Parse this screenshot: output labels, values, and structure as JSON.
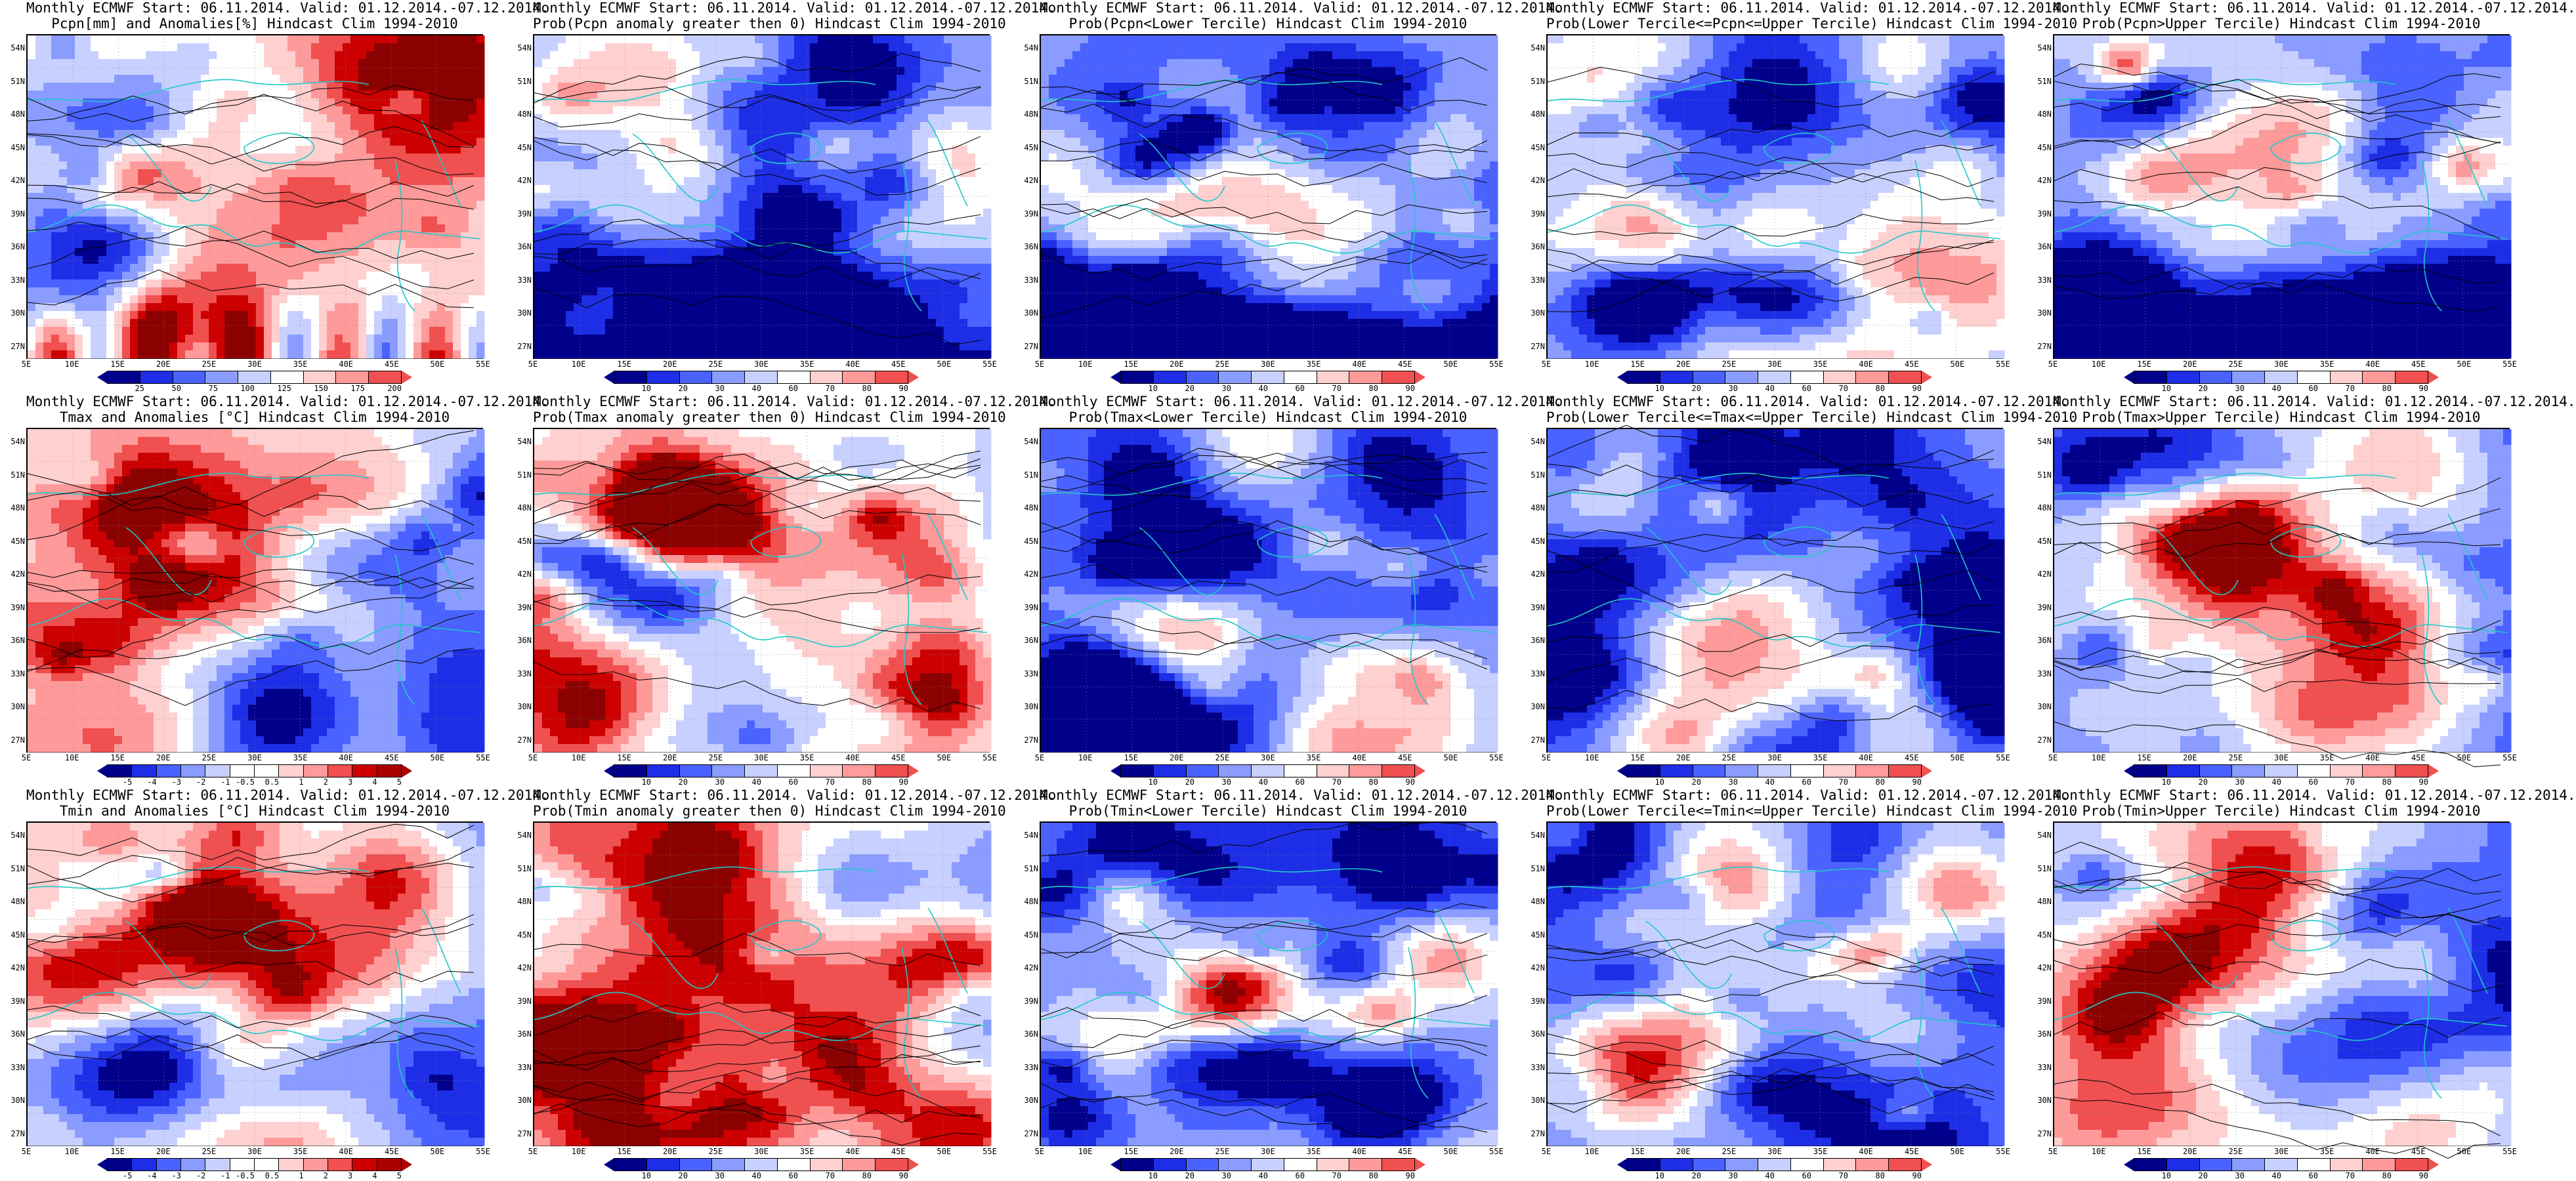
{
  "title_line1": "Monthly ECMWF Start: 06.11.2014. Valid: 01.12.2014.-07.12.2014.",
  "lat_ticks": [
    "54N",
    "51N",
    "48N",
    "45N",
    "42N",
    "39N",
    "36N",
    "33N",
    "30N",
    "27N"
  ],
  "lon_ticks": [
    "5E",
    "10E",
    "15E",
    "20E",
    "25E",
    "30E",
    "35E",
    "40E",
    "45E",
    "50E",
    "55E"
  ],
  "colors": {
    "ramp": [
      "#00008b",
      "#1e2ee6",
      "#4a62ff",
      "#8a9cff",
      "#c8d0ff",
      "#ffffff",
      "#ffd0d0",
      "#ff9a9a",
      "#f05050",
      "#cc0000",
      "#8b0000"
    ],
    "coast": "#20c8c8",
    "contour": "#000000"
  },
  "cbar_anomaly_tmax": [
    "-5",
    "-4",
    "-3",
    "-2",
    "-1",
    "-0.5",
    "0.5",
    "1",
    "2",
    "3",
    "4",
    "5"
  ],
  "cbar_prob": [
    "10",
    "20",
    "30",
    "40",
    "60",
    "70",
    "80",
    "90"
  ],
  "cbar_pcpn": [
    "25",
    "50",
    "75",
    "100",
    "125",
    "150",
    "175",
    "200"
  ],
  "rows": [
    [
      {
        "title": "Pcpn[mm] and Anomalies[%] Hindcast Clim 1994-2010",
        "bias": 0.3,
        "style": "pcpn",
        "cbar": "pcpn"
      },
      {
        "title": "Prob(Pcpn anomaly greater then 0) Hindcast Clim 1994-2010",
        "bias": -0.45,
        "style": "south",
        "cbar": "prob"
      },
      {
        "title": "Prob(Pcpn<Lower Tercile) Hindcast Clim 1994-2010",
        "bias": -0.35,
        "style": "southdeep",
        "cbar": "prob"
      },
      {
        "title": "Prob(Lower Tercile<=Pcpn<=Upper Tercile) Hindcast Clim 1994-2010",
        "bias": -0.4,
        "style": "southred",
        "cbar": "prob"
      },
      {
        "title": "Prob(Pcpn>Upper Tercile) Hindcast Clim 1994-2010",
        "bias": -0.3,
        "style": "south",
        "cbar": "prob"
      }
    ],
    [
      {
        "title": "Tmax and Anomalies [°C] Hindcast Clim 1994-2010",
        "bias": 0.15,
        "style": "nwred",
        "cbar": "anom"
      },
      {
        "title": "Prob(Tmax anomaly greater then 0) Hindcast Clim 1994-2010",
        "bias": 0.3,
        "style": "nwred",
        "cbar": "prob"
      },
      {
        "title": "Prob(Tmax<Lower Tercile) Hindcast Clim 1994-2010",
        "bias": -0.55,
        "style": "blue",
        "cbar": "prob"
      },
      {
        "title": "Prob(Lower Tercile<=Tmax<=Upper Tercile) Hindcast Clim 1994-2010",
        "bias": -0.6,
        "style": "blue",
        "cbar": "prob"
      },
      {
        "title": "Prob(Tmax>Upper Tercile) Hindcast Clim 1994-2010",
        "bias": -0.2,
        "style": "nwred",
        "cbar": "prob"
      }
    ],
    [
      {
        "title": "Tmin and Anomalies [°C] Hindcast Clim 1994-2010",
        "bias": 0.0,
        "style": "nwred",
        "cbar": "anom"
      },
      {
        "title": "Prob(Tmin anomaly greater then 0) Hindcast Clim 1994-2010",
        "bias": 0.2,
        "style": "nwred",
        "cbar": "prob"
      },
      {
        "title": "Prob(Tmin<Lower Tercile) Hindcast Clim 1994-2010",
        "bias": -0.5,
        "style": "blue",
        "cbar": "prob"
      },
      {
        "title": "Prob(Lower Tercile<=Tmin<=Upper Tercile) Hindcast Clim 1994-2010",
        "bias": -0.65,
        "style": "blue",
        "cbar": "prob"
      },
      {
        "title": "Prob(Tmin>Upper Tercile) Hindcast Clim 1994-2010",
        "bias": -0.25,
        "style": "nwred",
        "cbar": "prob"
      }
    ]
  ]
}
